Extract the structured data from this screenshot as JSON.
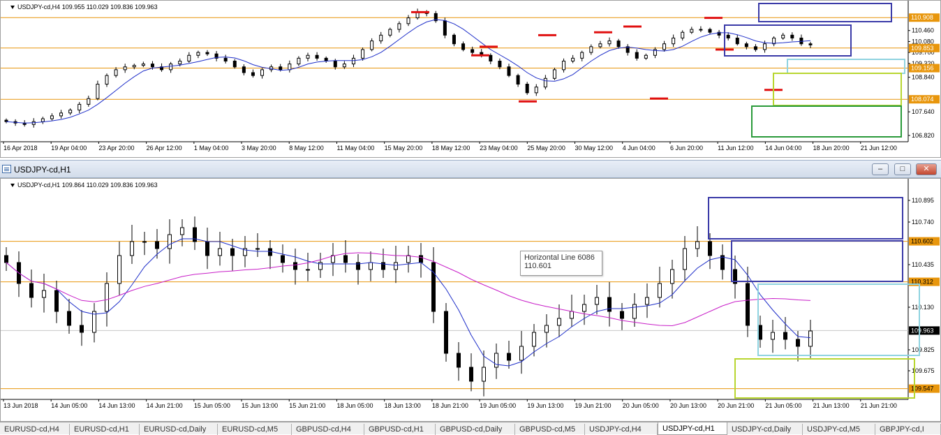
{
  "h4": {
    "ohlc_text": "USDJPY-cd,H4  109.955 110.029 109.836 109.963",
    "price_labels": [
      "110.460",
      "110.080",
      "109.700",
      "109.320",
      "108.840",
      "107.640",
      "106.820"
    ],
    "price_min": 106.65,
    "price_max": 111.35,
    "highlighted_prices": [
      {
        "value": "110.908",
        "level": 110.908,
        "color": "#e8960c"
      },
      {
        "value": "109.853",
        "level": 109.853,
        "color": "#e8960c"
      },
      {
        "value": "109.156",
        "level": 109.156,
        "color": "#e8960c"
      },
      {
        "value": "108.074",
        "level": 108.074,
        "color": "#e8960c"
      }
    ],
    "time_labels": [
      "16 Apr 2018",
      "19 Apr 04:00",
      "23 Apr 20:00",
      "26 Apr 12:00",
      "1 May 04:00",
      "3 May 20:00",
      "8 May 12:00",
      "11 May 04:00",
      "15 May 20:00",
      "18 May 12:00",
      "23 May 04:00",
      "25 May 20:00",
      "30 May 12:00",
      "4 Jun 04:00",
      "6 Jun 20:00",
      "11 Jun 12:00",
      "14 Jun 04:00",
      "18 Jun 20:00",
      "21 Jun 12:00"
    ],
    "ma_color": "#1f2fc9",
    "candles_close": [
      107.3,
      107.25,
      107.2,
      107.3,
      107.4,
      107.5,
      107.6,
      107.7,
      107.9,
      108.1,
      108.6,
      108.9,
      109.1,
      109.2,
      109.25,
      109.3,
      109.2,
      109.1,
      109.3,
      109.4,
      109.6,
      109.7,
      109.65,
      109.5,
      109.4,
      109.2,
      109.0,
      108.9,
      109.1,
      109.2,
      109.1,
      109.3,
      109.5,
      109.6,
      109.5,
      109.4,
      109.2,
      109.3,
      109.5,
      109.8,
      110.1,
      110.3,
      110.5,
      110.7,
      110.9,
      111.1,
      111.05,
      110.8,
      110.3,
      110.0,
      109.8,
      109.7,
      109.6,
      109.4,
      109.2,
      108.9,
      108.6,
      108.3,
      108.5,
      108.8,
      109.1,
      109.4,
      109.5,
      109.7,
      109.9,
      110.0,
      110.1,
      109.9,
      109.7,
      109.5,
      109.6,
      109.8,
      110.0,
      110.2,
      110.4,
      110.5,
      110.5,
      110.4,
      110.3,
      110.2,
      110.0,
      109.9,
      109.8,
      110.0,
      110.2,
      110.3,
      110.2,
      110.0,
      109.96
    ],
    "red_levels": [
      {
        "value": 111.1
      },
      {
        "value": 110.9
      },
      {
        "value": 110.6
      },
      {
        "value": 110.4
      },
      {
        "value": 110.3
      },
      {
        "value": 109.9
      },
      {
        "value": 109.8
      },
      {
        "value": 109.6
      },
      {
        "value": 108.4
      },
      {
        "value": 108.1
      },
      {
        "value": 108.0
      }
    ]
  },
  "h1": {
    "window_title": "USDJPY-cd,H1",
    "ohlc_text": "USDJPY-cd,H1  109.864 110.029 109.836 109.963",
    "price_labels": [
      "110.895",
      "110.740",
      "110.435",
      "110.130",
      "109.825",
      "109.675"
    ],
    "price_min": 109.48,
    "price_max": 110.98,
    "highlighted_prices": [
      {
        "value": "110.602",
        "level": 110.602,
        "color": "#e8960c",
        "text_color": "#000"
      },
      {
        "value": "110.312",
        "level": 110.312,
        "color": "#e8960c",
        "text_color": "#000"
      },
      {
        "value": "109.963",
        "level": 109.963,
        "color": "#000000",
        "text_color": "#fff"
      },
      {
        "value": "109.547",
        "level": 109.547,
        "color": "#e8960c",
        "text_color": "#000"
      }
    ],
    "time_labels": [
      "13 Jun 2018",
      "14 Jun 05:00",
      "14 Jun 13:00",
      "14 Jun 21:00",
      "15 Jun 05:00",
      "15 Jun 13:00",
      "15 Jun 21:00",
      "18 Jun 05:00",
      "18 Jun 13:00",
      "18 Jun 21:00",
      "19 Jun 05:00",
      "19 Jun 13:00",
      "19 Jun 21:00",
      "20 Jun 05:00",
      "20 Jun 13:00",
      "20 Jun 21:00",
      "21 Jun 05:00",
      "21 Jun 13:00",
      "21 Jun 21:00"
    ],
    "tooltip": {
      "line1": "Horizontal Line 6086",
      "line2": "110.601"
    },
    "fast_ma_color": "#1f2fc9",
    "slow_ma_color": "#c81ec8",
    "candles_close": [
      110.45,
      110.3,
      110.2,
      110.25,
      110.1,
      110.0,
      109.95,
      110.1,
      110.3,
      110.5,
      110.6,
      110.6,
      110.55,
      110.65,
      110.7,
      110.6,
      110.5,
      110.55,
      110.5,
      110.55,
      110.55,
      110.5,
      110.45,
      110.4,
      110.4,
      110.45,
      110.5,
      110.45,
      110.4,
      110.45,
      110.4,
      110.45,
      110.5,
      110.45,
      110.1,
      109.8,
      109.7,
      109.6,
      109.7,
      109.8,
      109.75,
      109.85,
      109.95,
      110.0,
      110.05,
      110.1,
      110.15,
      110.2,
      110.1,
      110.05,
      110.15,
      110.2,
      110.3,
      110.4,
      110.55,
      110.6,
      110.5,
      110.4,
      110.3,
      110.0,
      109.9,
      109.95,
      109.9,
      109.85,
      109.96
    ]
  },
  "tabs": [
    {
      "label": "EURUSD-cd,H4",
      "active": false
    },
    {
      "label": "EURUSD-cd,H1",
      "active": false
    },
    {
      "label": "EURUSD-cd,Daily",
      "active": false
    },
    {
      "label": "EURUSD-cd,M5",
      "active": false
    },
    {
      "label": "GBPUSD-cd,H4",
      "active": false
    },
    {
      "label": "GBPUSD-cd,H1",
      "active": false
    },
    {
      "label": "GBPUSD-cd,Daily",
      "active": false
    },
    {
      "label": "GBPUSD-cd,M5",
      "active": false
    },
    {
      "label": "USDJPY-cd,H4",
      "active": false
    },
    {
      "label": "USDJPY-cd,H1",
      "active": true
    },
    {
      "label": "USDJPY-cd,Daily",
      "active": false
    },
    {
      "label": "USDJPY-cd,M5",
      "active": false
    },
    {
      "label": "GBPJPY-cd,I",
      "active": false
    }
  ]
}
